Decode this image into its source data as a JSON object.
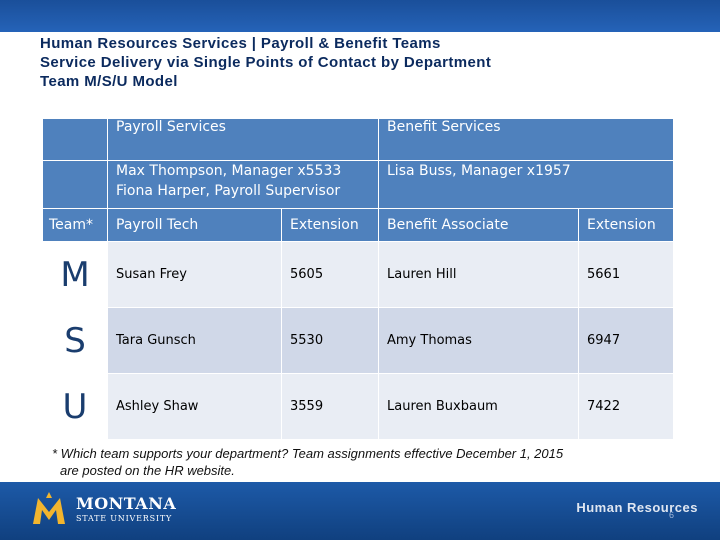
{
  "title": {
    "line1": "Human Resources Services | Payroll & Benefit Teams",
    "line2": "Service Delivery via Single Points of Contact by Department",
    "line3": "Team M/S/U Model"
  },
  "table": {
    "payroll_heading": "Payroll Services",
    "benefit_heading": "Benefit Services",
    "payroll_manager": "Max Thompson, Manager x5533",
    "payroll_supervisor": "Fiona Harper, Payroll Supervisor",
    "benefit_manager": "Lisa Buss, Manager x1957",
    "columns": {
      "team": "Team*",
      "payroll_tech": "Payroll Tech",
      "extension1": "Extension",
      "benefit_associate": "Benefit Associate",
      "extension2": "Extension"
    },
    "rows": [
      {
        "team": "M",
        "payroll_tech": "Susan Frey",
        "payroll_ext": "5605",
        "benefit_associate": "Lauren Hill",
        "benefit_ext": "5661"
      },
      {
        "team": "S",
        "payroll_tech": "Tara Gunsch",
        "payroll_ext": "5530",
        "benefit_associate": "Amy Thomas",
        "benefit_ext": "6947"
      },
      {
        "team": "U",
        "payroll_tech": "Ashley Shaw",
        "payroll_ext": "3559",
        "benefit_associate": "Lauren Buxbaum",
        "benefit_ext": "7422"
      }
    ]
  },
  "footnote": {
    "line1": "* Which team supports your department? Team assignments effective December 1, 2015",
    "line2": "are posted on the HR website."
  },
  "footer": {
    "logo_line1": "MONTANA",
    "logo_line2": "STATE UNIVERSITY",
    "department": "Human Resources",
    "page_number": "6"
  },
  "colors": {
    "header_blue": "#4f81bd",
    "row_light": "#e9edf4",
    "row_dark": "#d0d8e8",
    "brand_gold": "#f2b52e"
  }
}
